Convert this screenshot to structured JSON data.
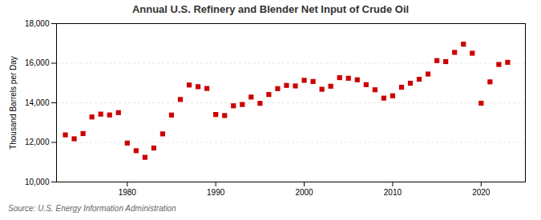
{
  "chart_data": {
    "type": "scatter",
    "title": "Annual U.S. Refinery and Blender Net Input of Crude Oil",
    "ylabel": "Thousand Barrels per Day",
    "source": "Source: U.S. Energy Information Administration",
    "color": "#cc0000",
    "marker": "square",
    "grid": "y",
    "xlim": [
      1972,
      2025
    ],
    "xticks": [
      1980,
      1990,
      2000,
      2010,
      2020
    ],
    "ylim": [
      10000,
      18000
    ],
    "yticks": [
      {
        "value": 10000,
        "label": "10,000"
      },
      {
        "value": 12000,
        "label": "12,000"
      },
      {
        "value": 14000,
        "label": "14,000"
      },
      {
        "value": 16000,
        "label": "16,000"
      },
      {
        "value": 18000,
        "label": "18,000"
      }
    ],
    "x": [
      1973,
      1974,
      1975,
      1976,
      1977,
      1978,
      1979,
      1980,
      1981,
      1982,
      1983,
      1984,
      1985,
      1986,
      1987,
      1988,
      1989,
      1990,
      1991,
      1992,
      1993,
      1994,
      1995,
      1996,
      1997,
      1998,
      1999,
      2000,
      2001,
      2002,
      2003,
      2004,
      2005,
      2006,
      2007,
      2008,
      2009,
      2010,
      2011,
      2012,
      2013,
      2014,
      2015,
      2016,
      2017,
      2018,
      2019,
      2020,
      2021,
      2022,
      2023
    ],
    "values": [
      12380,
      12183,
      12445,
      13284,
      13428,
      13387,
      13504,
      11967,
      11581,
      11246,
      11715,
      12430,
      13382,
      14170,
      14898,
      14814,
      14724,
      13409,
      13358,
      13848,
      13914,
      14290,
      13974,
      14419,
      14714,
      14879,
      14852,
      15136,
      15077,
      14684,
      14837,
      15271,
      15239,
      15162,
      14916,
      14657,
      14236,
      14355,
      14786,
      14990,
      15189,
      15453,
      16131,
      16080,
      16547,
      16960,
      16504,
      13978,
      15057,
      15936,
      16044
    ]
  }
}
